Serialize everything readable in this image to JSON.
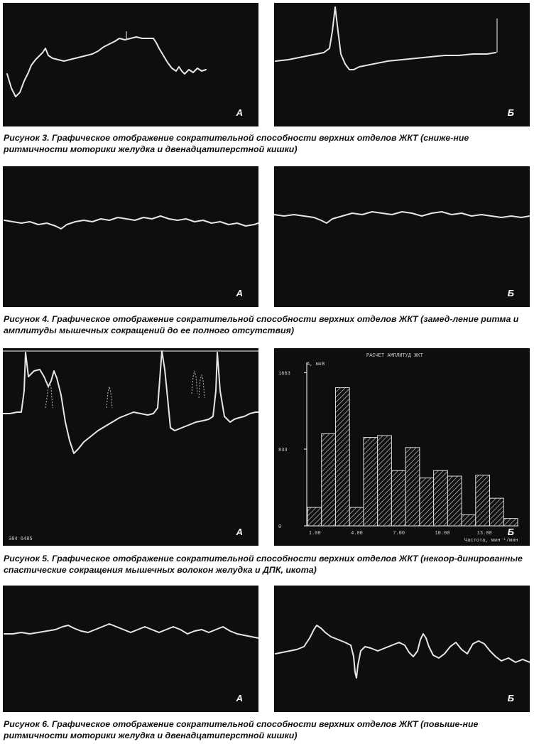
{
  "figures": [
    {
      "caption_title": "Рисунок 3.",
      "caption_text": "Графическое отображение сократительной способности верхних отделов ЖКТ (сниже-ние ритмичности моторики желудка и двенадцатиперстной кишки)",
      "panel_a_label": "А",
      "panel_b_label": "Б"
    },
    {
      "caption_title": "Рисунок 4.",
      "caption_text": "Графическое отображение сократительной способности верхних отделов ЖКТ (замед-ление ритма и амплитуды мышечных сокращений до ее полного отсутствия)",
      "panel_a_label": "А",
      "panel_b_label": "Б"
    },
    {
      "caption_title": "Рисунок 5.",
      "caption_text": "Графическое отображение сократительной способности верхних отделов ЖКТ (некоор-динированные спастические сокращения мышечных волокон желудка и ДПК, икота)",
      "panel_a_label": "А",
      "panel_b_label": "Б",
      "panel_a_counter": "384  6485",
      "histogram": {
        "title": "РАСЧЕТ АМПЛИТУД ЖКТ",
        "ylabel": "А, мкВ",
        "xlabel": "Частота, мин⁻¹/мин",
        "yticks": [
          "1663",
          "833",
          "0"
        ],
        "xticks": [
          "1.00",
          "4.00",
          "7.00",
          "10.00",
          "13.00"
        ],
        "values": [
          200,
          1000,
          1500,
          200,
          960,
          980,
          600,
          850,
          520,
          600,
          540,
          120,
          550,
          300,
          80
        ]
      }
    },
    {
      "caption_title": "Рисунок 6.",
      "caption_text": "Графическое отображение сократительной способности верхних отделов ЖКТ (повыше-ние ритмичности моторики желудка и двенадцатиперстной кишки)",
      "panel_a_label": "А",
      "panel_b_label": "Б"
    }
  ]
}
